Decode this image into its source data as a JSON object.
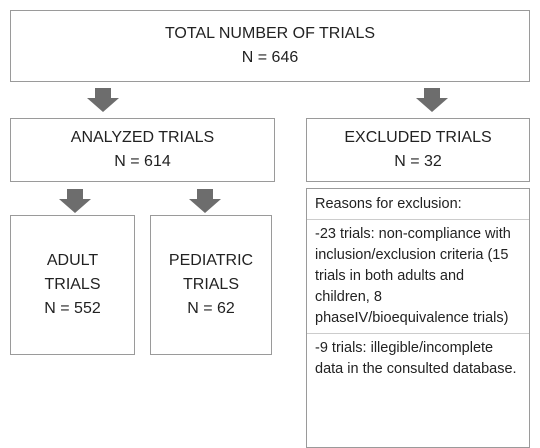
{
  "nodes": [
    {
      "label": "TOTAL NUMBER OF TRIALS",
      "value": "N = 646"
    },
    {
      "label": "ANALYZED TRIALS",
      "value": "N = 614"
    },
    {
      "label": "EXCLUDED TRIALS",
      "value": "N = 32"
    },
    {
      "label": "ADULT TRIALS",
      "value": "N = 552"
    },
    {
      "label": "PEDIATRIC TRIALS",
      "value": "N = 62"
    }
  ],
  "reasons": {
    "title": "Reasons for exclusion:",
    "items": [
      "-23 trials: non-compliance with inclusion/exclusion criteria (15 trials in both adults and children, 8 phaseIV/bioequivalence trials)",
      "-9 trials: illegible/incomplete data in the consulted database."
    ]
  }
}
